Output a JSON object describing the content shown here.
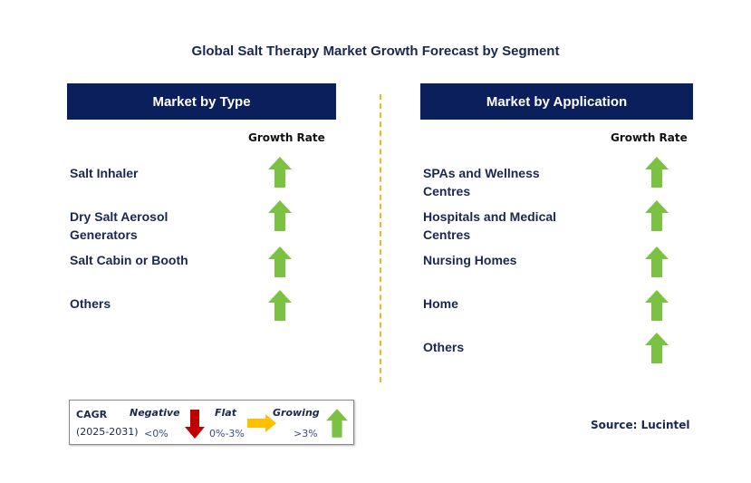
{
  "title": "Global Salt Therapy Market Growth Forecast by Segment",
  "left_panel": {
    "header": "Market by Type",
    "growth_label": "Growth Rate",
    "items": [
      {
        "label_lines": [
          "Salt Inhaler"
        ],
        "trend": "growing"
      },
      {
        "label_lines": [
          "Dry Salt Aerosol",
          "Generators"
        ],
        "trend": "growing"
      },
      {
        "label_lines": [
          "Salt Cabin or Booth"
        ],
        "trend": "growing"
      },
      {
        "label_lines": [
          "Others"
        ],
        "trend": "growing"
      }
    ]
  },
  "right_panel": {
    "header": "Market by Application",
    "growth_label": "Growth Rate",
    "items": [
      {
        "label_lines": [
          "SPAs and Wellness",
          "Centres"
        ],
        "trend": "growing"
      },
      {
        "label_lines": [
          "Hospitals and Medical",
          "Centres"
        ],
        "trend": "growing"
      },
      {
        "label_lines": [
          "Nursing Homes"
        ],
        "trend": "growing"
      },
      {
        "label_lines": [
          "Home"
        ],
        "trend": "growing"
      },
      {
        "label_lines": [
          "Others"
        ],
        "trend": "growing"
      }
    ]
  },
  "legend": {
    "cagr_label": "CAGR",
    "period": "(2025-2031)",
    "negative": {
      "label": "Negative",
      "range": "<0%",
      "icon": "down-arrow-icon"
    },
    "flat": {
      "label": "Flat",
      "range": "0%-3%",
      "icon": "right-arrow-icon"
    },
    "growing": {
      "label": "Growing",
      "range": ">3%",
      "icon": "up-arrow-icon"
    }
  },
  "source": "Source: Lucintel",
  "colors": {
    "header_bg": "#0b1f5c",
    "growing": "#7cc242",
    "negative": "#c00000",
    "flat": "#ffc000",
    "divider": "#f2b61c"
  }
}
